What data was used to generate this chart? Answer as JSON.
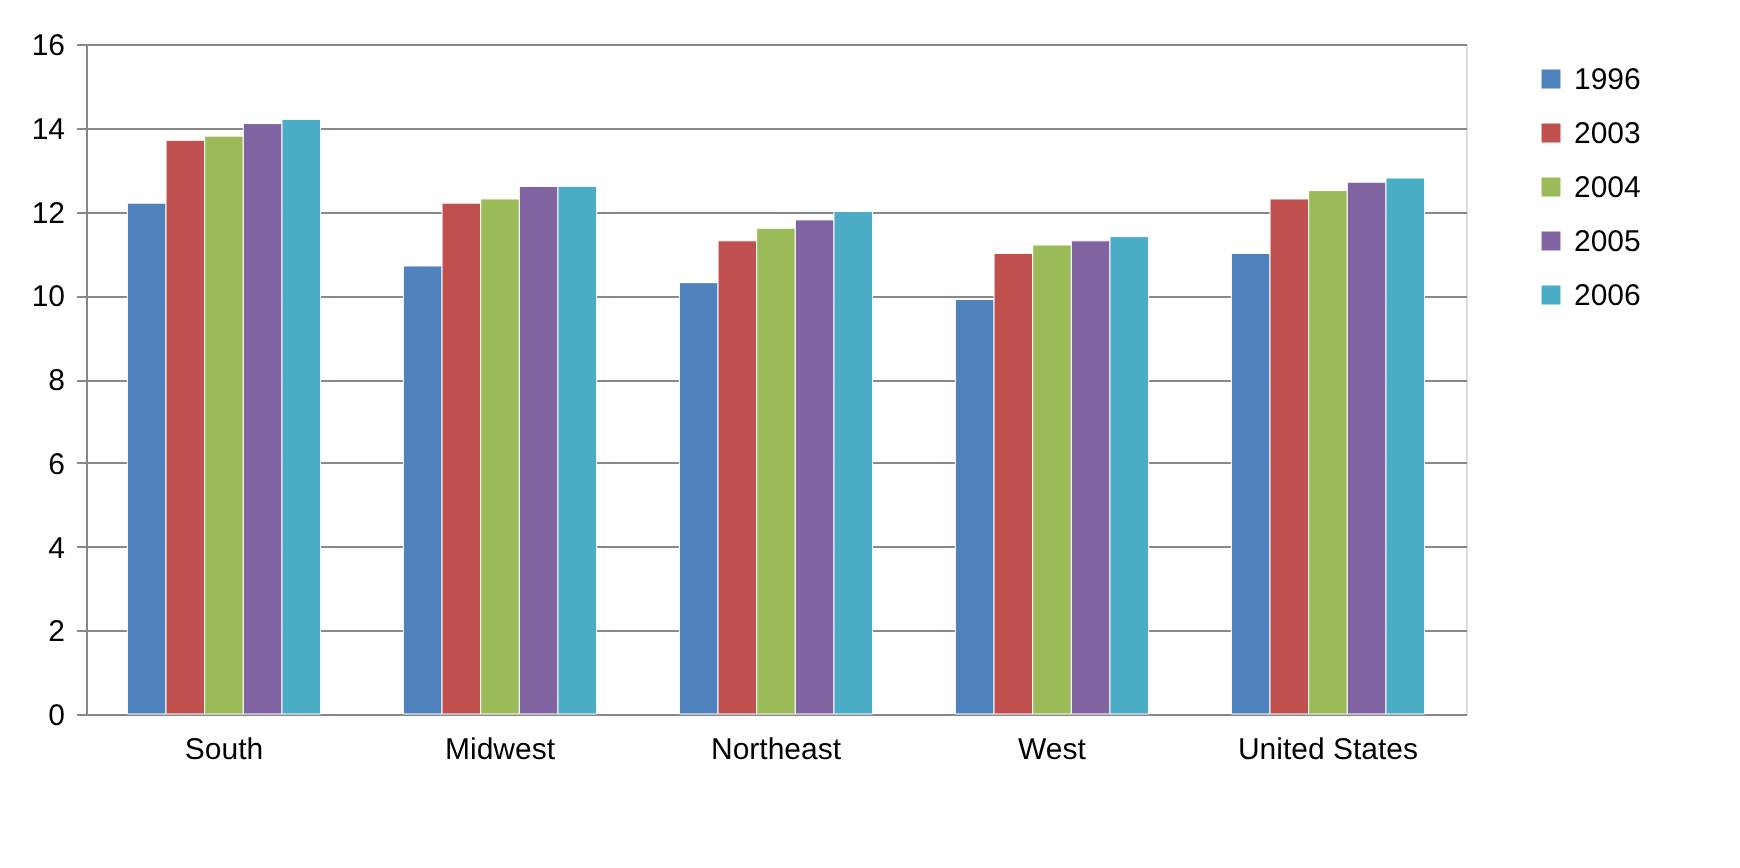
{
  "chart_data": {
    "type": "bar",
    "categories": [
      "South",
      "Midwest",
      "Northeast",
      "West",
      "United States"
    ],
    "series": [
      {
        "name": "1996",
        "color": "#4f81bd",
        "values": [
          12.2,
          10.7,
          10.3,
          9.9,
          11.0
        ]
      },
      {
        "name": "2003",
        "color": "#c0504d",
        "values": [
          13.7,
          12.2,
          11.3,
          11.0,
          12.3
        ]
      },
      {
        "name": "2004",
        "color": "#9bbb59",
        "values": [
          13.8,
          12.3,
          11.6,
          11.2,
          12.5
        ]
      },
      {
        "name": "2005",
        "color": "#8064a2",
        "values": [
          14.1,
          12.6,
          11.8,
          11.3,
          12.7
        ]
      },
      {
        "name": "2006",
        "color": "#4bacc6",
        "values": [
          14.2,
          12.6,
          12.0,
          11.4,
          12.8
        ]
      }
    ],
    "ylim": [
      0,
      16
    ],
    "yticks": [
      0,
      2,
      4,
      6,
      8,
      10,
      12,
      14,
      16
    ],
    "grid": "y",
    "legend": "right"
  }
}
